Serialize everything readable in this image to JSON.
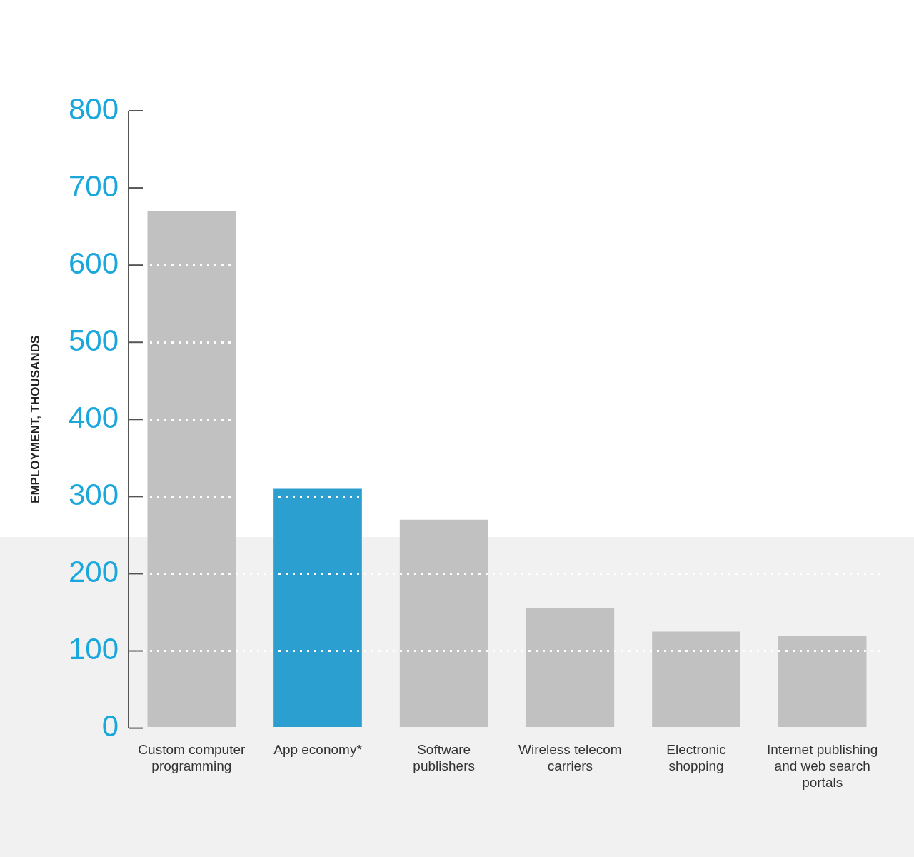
{
  "chart_data": {
    "type": "bar",
    "ylabel": "EMPLOYMENT, THOUSANDS",
    "categories": [
      "Custom computer programming",
      "App economy*",
      "Software publishers",
      "Wireless telecom carriers",
      "Electronic shopping",
      "Internet publishing and web search portals"
    ],
    "values": [
      670,
      310,
      270,
      155,
      125,
      120
    ],
    "colors": [
      "#c0c1c0",
      "#2a9fd0",
      "#c0c1c0",
      "#c0c1c0",
      "#c0c1c0",
      "#c0c1c0"
    ],
    "ylim": [
      0,
      800
    ],
    "yticks": [
      0,
      100,
      200,
      300,
      400,
      500,
      600,
      700,
      800
    ],
    "grid": "y"
  }
}
